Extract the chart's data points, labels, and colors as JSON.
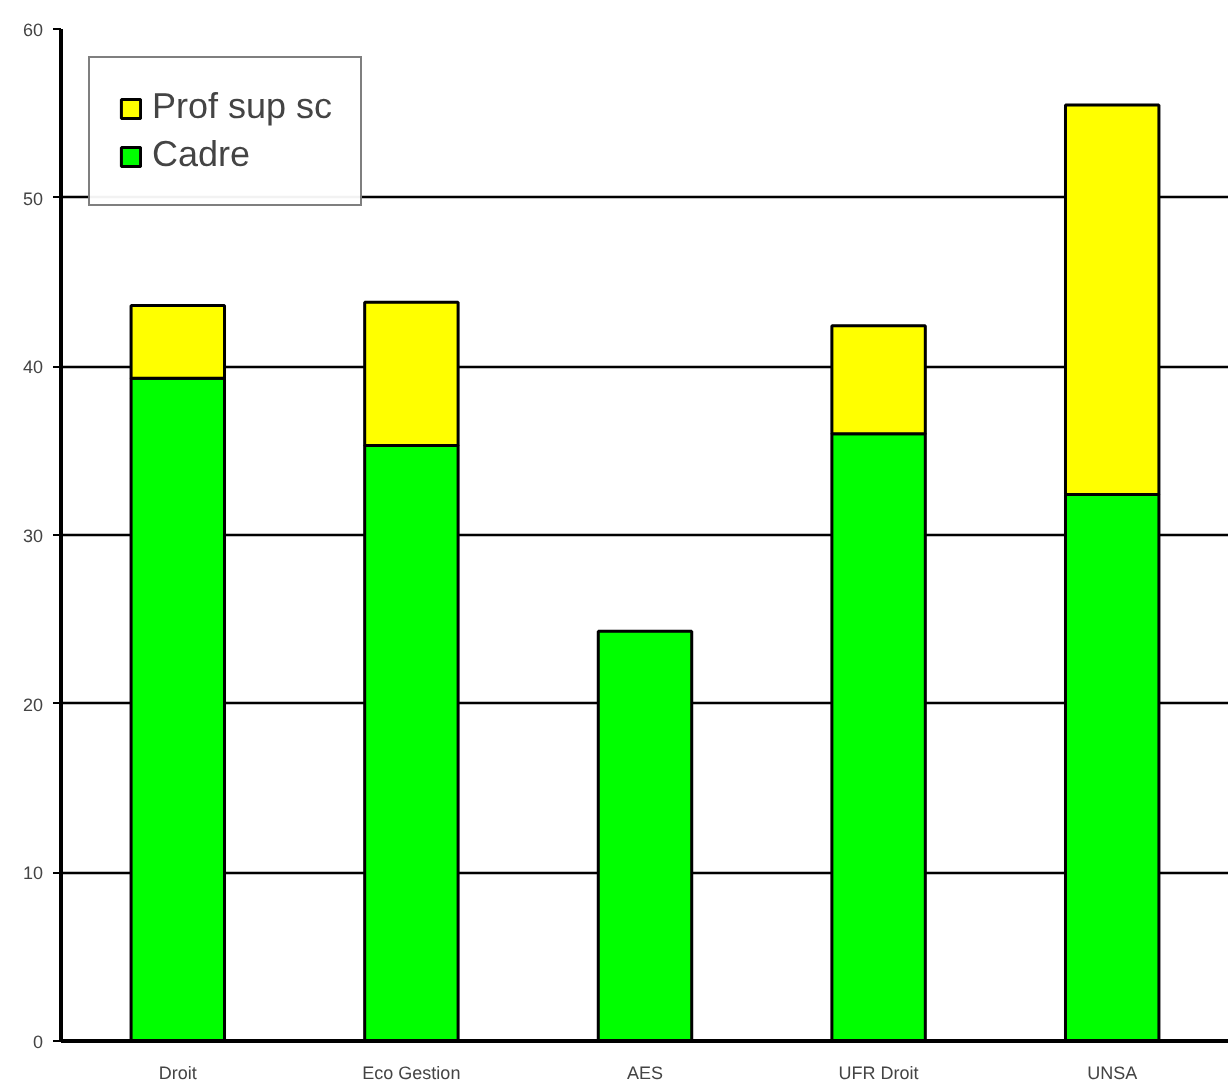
{
  "chart_data": {
    "type": "bar",
    "stacked": true,
    "categories": [
      "Droit",
      "Eco Gestion",
      "AES",
      "UFR Droit",
      "UNSA"
    ],
    "series": [
      {
        "name": "Cadre",
        "color": "#00ff00",
        "values": [
          39.3,
          35.3,
          24.3,
          36.0,
          32.4
        ]
      },
      {
        "name": "Prof sup sc",
        "color": "#ffff00",
        "values": [
          4.3,
          8.5,
          null,
          6.4,
          23.1
        ]
      }
    ],
    "ylim": [
      0,
      60
    ],
    "yticks": [
      0,
      10,
      20,
      30,
      40,
      50,
      60
    ],
    "grid": "y",
    "legend": "top left"
  }
}
